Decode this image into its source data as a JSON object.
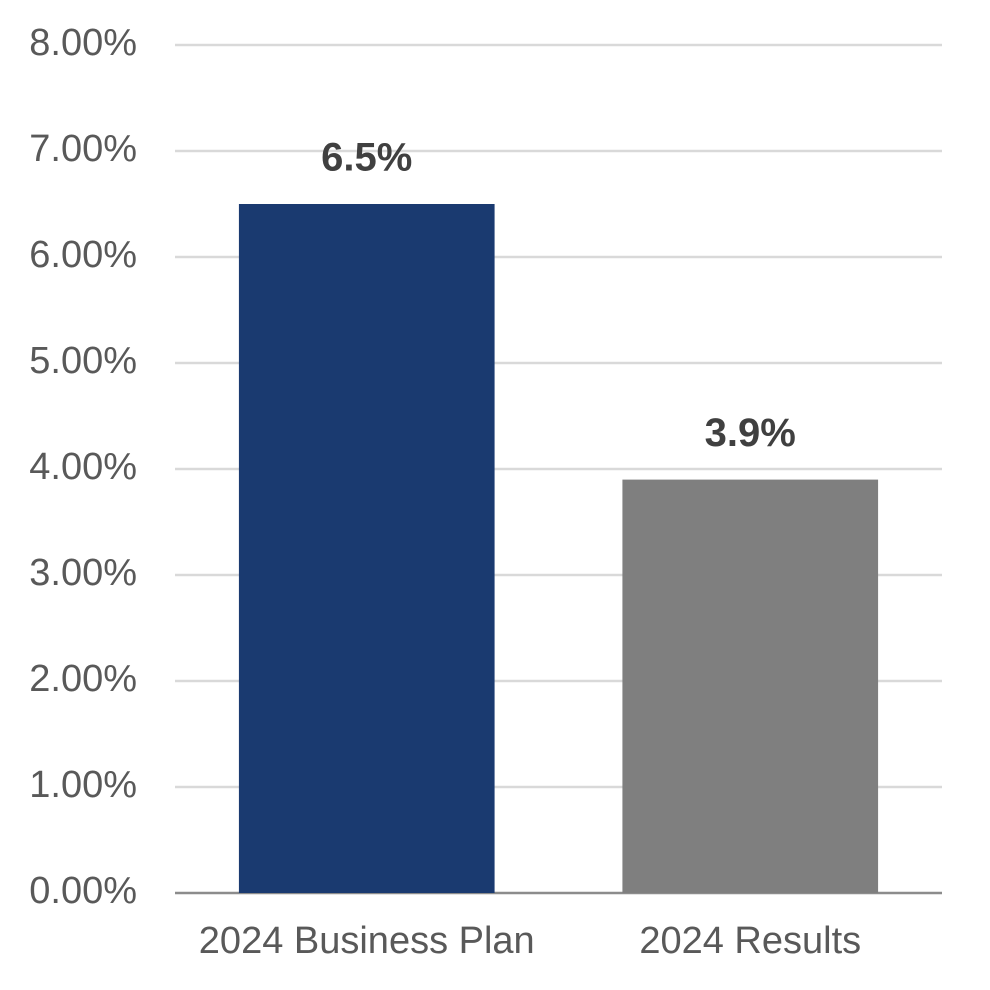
{
  "chart_data": {
    "type": "bar",
    "categories": [
      "2024 Business Plan",
      "2024 Results"
    ],
    "values": [
      6.5,
      3.9
    ],
    "value_labels": [
      "6.5%",
      "3.9%"
    ],
    "colors": [
      "#1a3a70",
      "#7f7f7f"
    ],
    "ylim": [
      0,
      8
    ],
    "yticks": [
      {
        "value": 0,
        "label": "0.00%"
      },
      {
        "value": 1,
        "label": "1.00%"
      },
      {
        "value": 2,
        "label": "2.00%"
      },
      {
        "value": 3,
        "label": "3.00%"
      },
      {
        "value": 4,
        "label": "4.00%"
      },
      {
        "value": 5,
        "label": "5.00%"
      },
      {
        "value": 6,
        "label": "6.00%"
      },
      {
        "value": 7,
        "label": "7.00%"
      },
      {
        "value": 8,
        "label": "8.00%"
      }
    ],
    "grid": true
  }
}
